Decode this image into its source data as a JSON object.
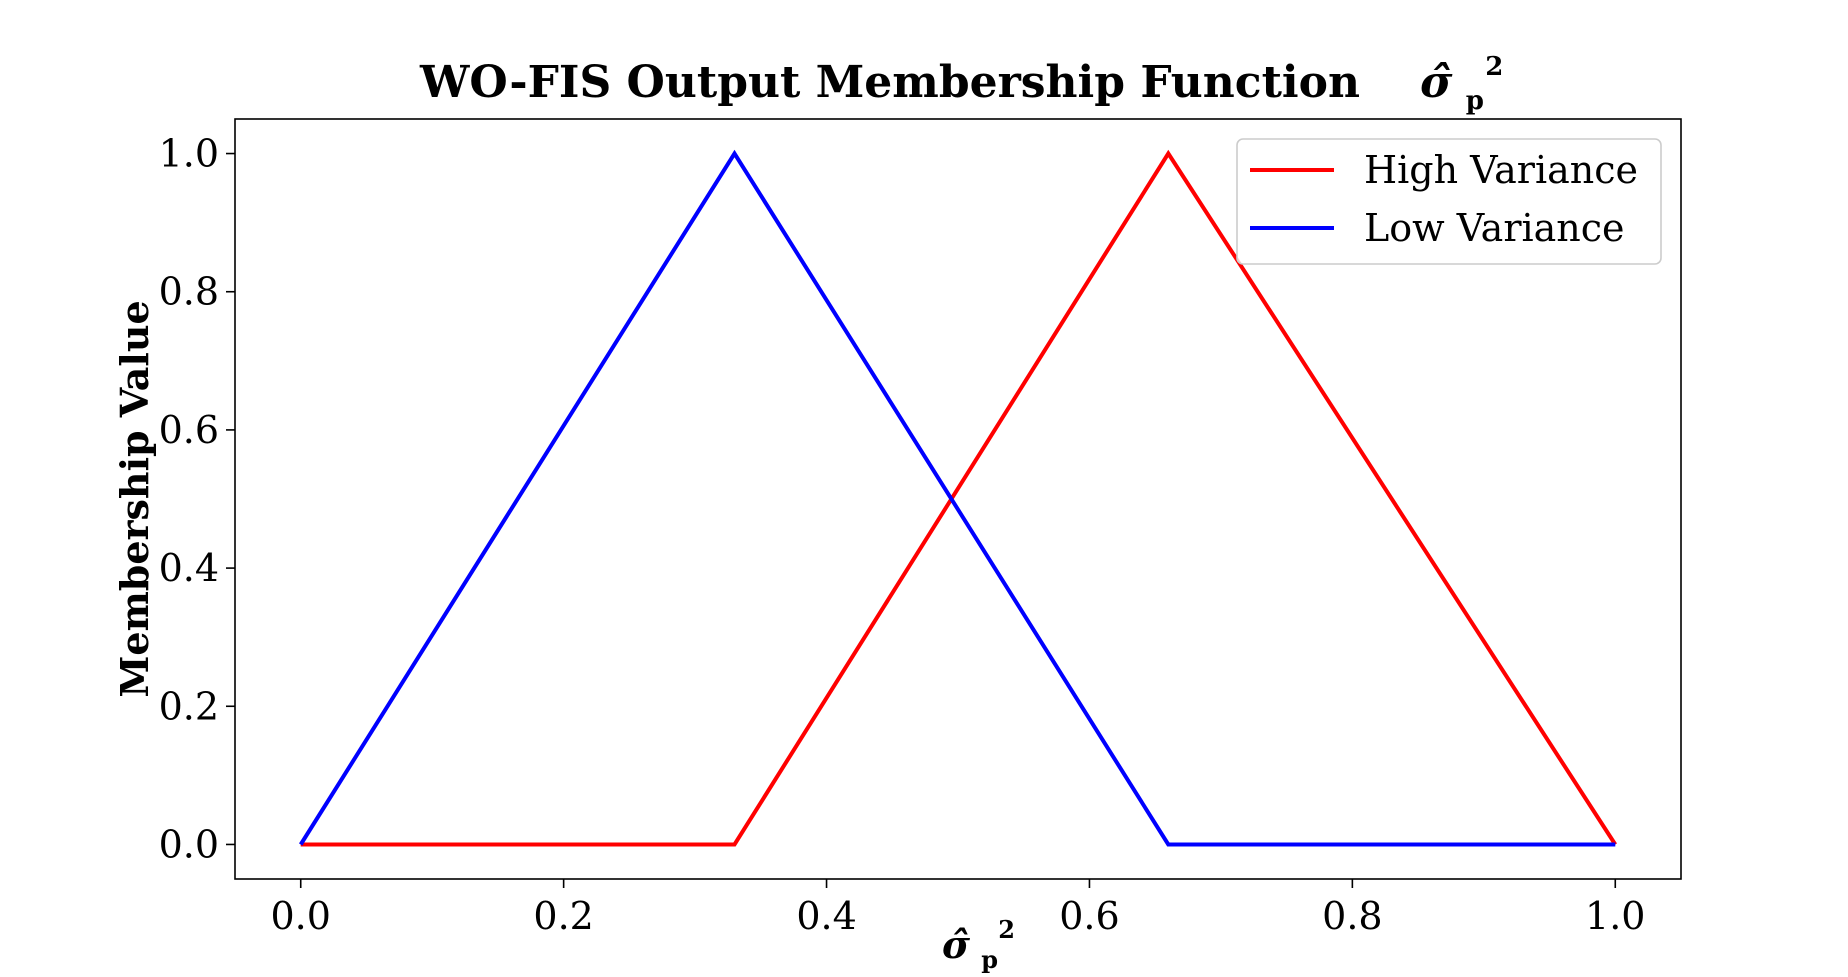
{
  "chart_data": {
    "type": "line",
    "title": "WO-FIS Output Membership Function",
    "title_symbol": {
      "base": "σ̂",
      "sup": "2",
      "sub": "p"
    },
    "xlabel_symbol": {
      "base": "σ̂",
      "sup": "2",
      "sub": "p"
    },
    "ylabel": "Membership Value",
    "xlim": [
      -0.05,
      1.05
    ],
    "ylim": [
      -0.05,
      1.05
    ],
    "x_ticks": [
      "0.0",
      "0.2",
      "0.4",
      "0.6",
      "0.8",
      "1.0"
    ],
    "y_ticks": [
      "0.0",
      "0.2",
      "0.4",
      "0.6",
      "0.8",
      "1.0"
    ],
    "x_tick_values": [
      0.0,
      0.2,
      0.4,
      0.6,
      0.8,
      1.0
    ],
    "y_tick_values": [
      0.0,
      0.2,
      0.4,
      0.6,
      0.8,
      1.0
    ],
    "grid": false,
    "legend_position": "top-right",
    "series": [
      {
        "name": "High Variance",
        "color": "#ff0000",
        "x": [
          0.0,
          0.33,
          0.66,
          1.0
        ],
        "y": [
          0.0,
          0.0,
          1.0,
          0.0
        ]
      },
      {
        "name": "Low Variance",
        "color": "#0000ff",
        "x": [
          0.0,
          0.33,
          0.66,
          1.0
        ],
        "y": [
          0.0,
          1.0,
          0.0,
          0.0
        ]
      }
    ]
  }
}
